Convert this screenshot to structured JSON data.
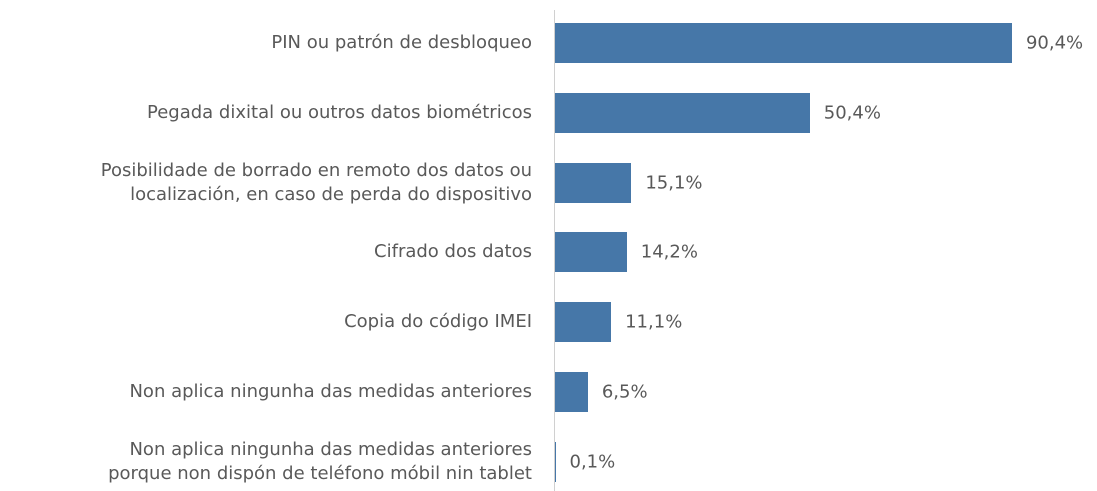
{
  "chart_data": {
    "type": "bar",
    "orientation": "horizontal",
    "categories": [
      "PIN ou patrón de desbloqueo",
      "Pegada dixital ou outros datos biométricos",
      "Posibilidade de borrado en remoto dos datos ou\nlocalización, en caso de perda do dispositivo",
      "Cifrado dos datos",
      "Copia do código IMEI",
      "Non aplica ningunha das medidas anteriores",
      "Non aplica ningunha das medidas anteriores\nporque non dispón de teléfono móbil nin tablet"
    ],
    "values": [
      90.4,
      50.4,
      15.1,
      14.2,
      11.1,
      6.5,
      0.1
    ],
    "value_labels": [
      "90,4%",
      "50,4%",
      "15,1%",
      "14,2%",
      "11,1%",
      "6,5%",
      "0,1%"
    ],
    "color": "#4677a8"
  }
}
